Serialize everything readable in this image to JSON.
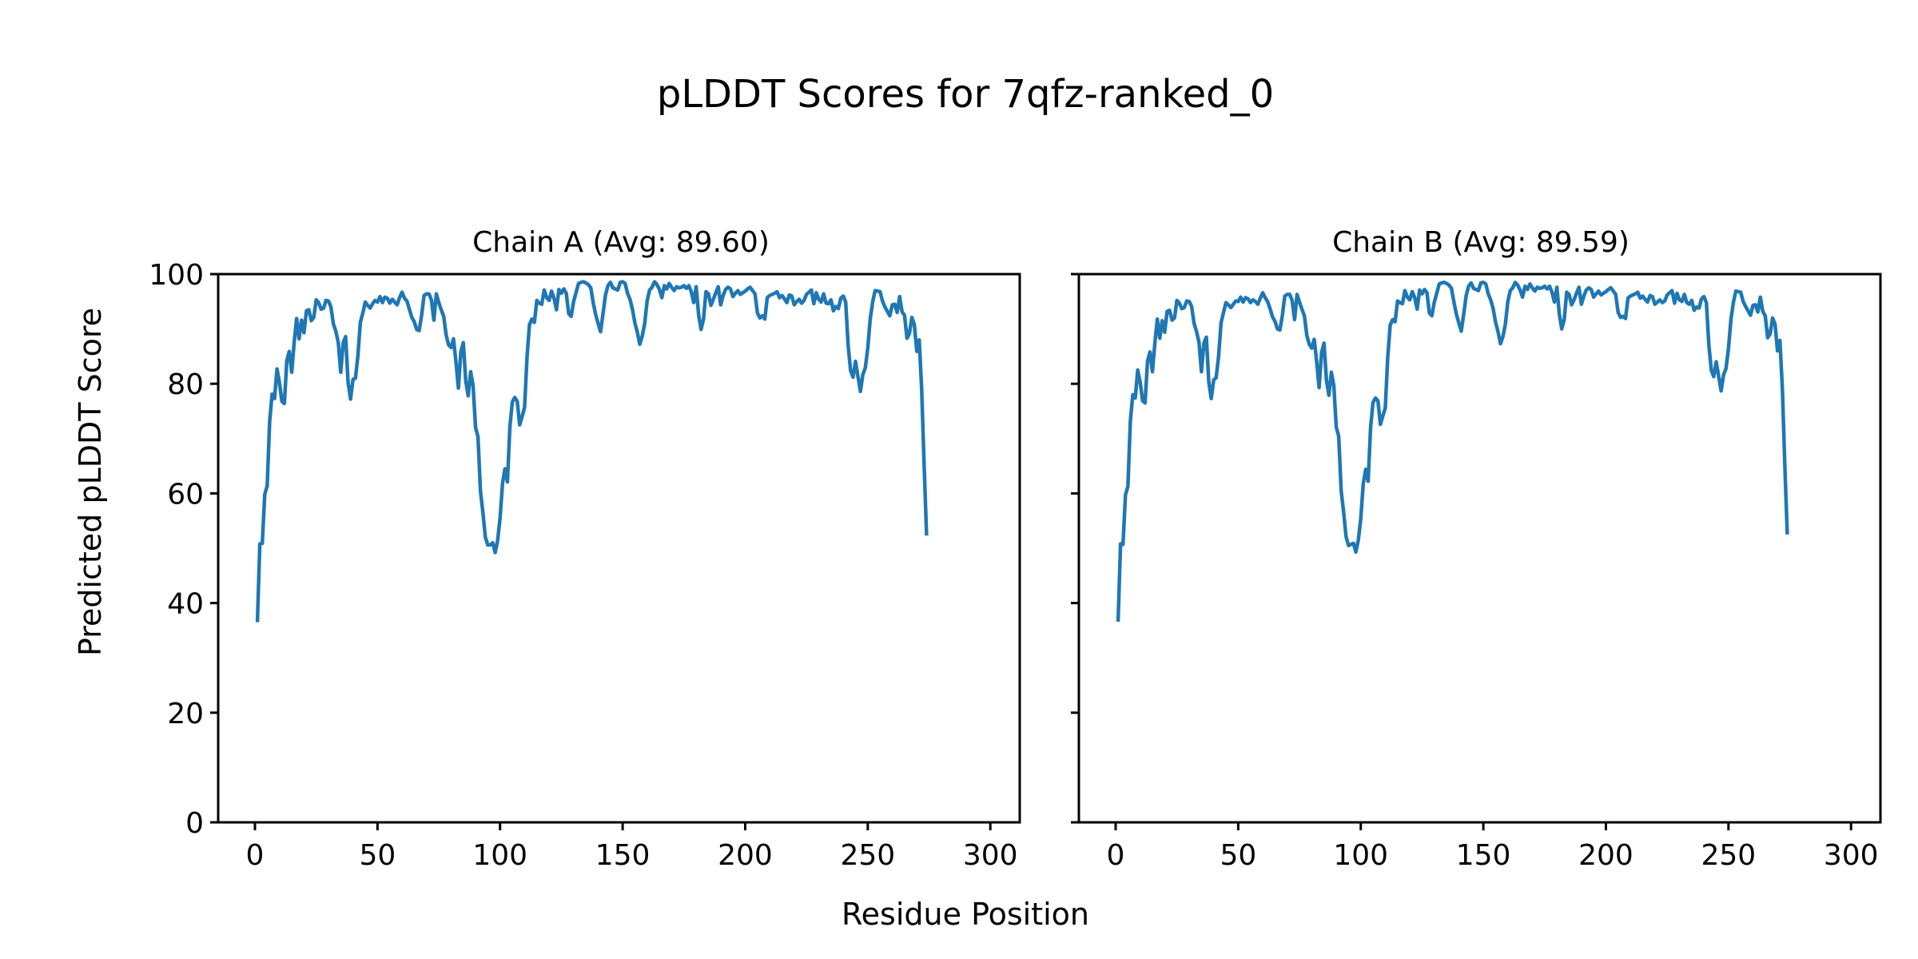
{
  "figure_title": "pLDDT Scores for 7qfz-ranked_0",
  "shared_xlabel": "Residue Position",
  "shared_ylabel": "Predicted pLDDT Score",
  "line_color": "#1f77b4",
  "chart_data": [
    {
      "type": "line",
      "title": "Chain A (Avg: 89.60)",
      "xlim": [
        -15,
        312
      ],
      "ylim": [
        0,
        100
      ],
      "xticks": [
        0,
        50,
        100,
        150,
        200,
        250,
        300
      ],
      "yticks": [
        0,
        20,
        40,
        60,
        80,
        100
      ],
      "grid": false,
      "x_start": 1,
      "y": [
        36.5,
        50.8,
        50.9,
        59.8,
        61.4,
        73.1,
        78.1,
        77.3,
        82.7,
        80.2,
        76.8,
        76.4,
        84.2,
        85.9,
        82.1,
        87.5,
        91.9,
        88.2,
        91.6,
        89.3,
        93.3,
        93.5,
        91.5,
        92.1,
        95.3,
        94.8,
        93.6,
        93.8,
        95.2,
        95.1,
        94.0,
        90.9,
        89.6,
        87.5,
        82.1,
        87.5,
        88.6,
        80.2,
        77.2,
        80.8,
        81.0,
        85.1,
        91.2,
        92.9,
        94.9,
        94.3,
        93.8,
        94.6,
        95.2,
        94.9,
        95.9,
        94.8,
        95.8,
        95.6,
        94.7,
        95.4,
        94.9,
        94.4,
        95.7,
        96.7,
        95.6,
        95.1,
        93.6,
        92.1,
        91.3,
        89.9,
        89.7,
        92.5,
        96.1,
        96.4,
        96.4,
        95.3,
        91.6,
        96.4,
        94.8,
        93.5,
        92.3,
        88.9,
        87.1,
        86.6,
        88.2,
        84.0,
        79.2,
        85.8,
        87.5,
        80.5,
        77.8,
        82.2,
        79.6,
        72.0,
        70.3,
        60.4,
        56.5,
        52.0,
        50.6,
        50.6,
        51.0,
        49.2,
        51.4,
        55.5,
        61.8,
        64.5,
        62.1,
        72.1,
        76.7,
        77.5,
        76.8,
        72.5,
        74.0,
        75.7,
        84.9,
        90.8,
        91.8,
        91.2,
        95.2,
        94.7,
        94.5,
        97.1,
        95.7,
        95.2,
        96.9,
        95.6,
        93.5,
        97.2,
        96.5,
        97.3,
        96.5,
        92.8,
        92.3,
        95.0,
        96.6,
        98.3,
        98.5,
        98.6,
        98.4,
        98.1,
        97.5,
        94.8,
        92.6,
        91.0,
        89.5,
        92.8,
        96.2,
        97.9,
        98.5,
        97.5,
        97.3,
        97.1,
        98.5,
        98.6,
        98.3,
        96.5,
        95.4,
        93.6,
        91.1,
        89.4,
        87.2,
        88.7,
        91.0,
        95.1,
        97.1,
        97.6,
        98.6,
        98.1,
        97.2,
        95.7,
        97.9,
        97.3,
        98.3,
        97.6,
        97.0,
        97.7,
        97.5,
        97.6,
        97.9,
        97.4,
        97.9,
        96.8,
        94.8,
        97.7,
        92.6,
        89.9,
        91.8,
        96.8,
        96.4,
        94.3,
        95.4,
        96.6,
        97.7,
        94.4,
        96.1,
        97.2,
        97.6,
        97.3,
        95.9,
        96.5,
        97.0,
        96.3,
        96.6,
        96.9,
        97.3,
        97.6,
        97.0,
        96.4,
        92.9,
        92.0,
        92.4,
        91.8,
        95.7,
        96.1,
        96.3,
        96.5,
        96.8,
        95.7,
        96.1,
        95.5,
        94.8,
        96.2,
        96.0,
        94.4,
        95.0,
        95.4,
        94.7,
        95.2,
        96.3,
        96.7,
        97.1,
        94.6,
        96.6,
        95.4,
        94.9,
        96.4,
        94.7,
        94.6,
        95.3,
        93.3,
        94.1,
        93.7,
        95.6,
        96.0,
        94.9,
        87.0,
        82.4,
        81.2,
        84.1,
        81.3,
        78.6,
        81.7,
        82.9,
        86.5,
        91.8,
        94.9,
        97.0,
        96.9,
        96.8,
        95.1,
        94.0,
        93.2,
        92.4,
        94.4,
        94.5,
        93.0,
        95.9,
        93.1,
        92.5,
        88.3,
        89.2,
        92.1,
        90.8,
        85.9,
        88.0,
        78.9,
        65.1,
        52.3
      ]
    },
    {
      "type": "line",
      "title": "Chain B (Avg: 89.59)",
      "xlim": [
        -15,
        312
      ],
      "ylim": [
        0,
        100
      ],
      "xticks": [
        0,
        50,
        100,
        150,
        200,
        250,
        300
      ],
      "yticks": [
        0,
        20,
        40,
        60,
        80,
        100
      ],
      "grid": false,
      "x_start": 1,
      "y": [
        36.6,
        50.8,
        50.7,
        59.7,
        61.3,
        73.2,
        78.0,
        77.4,
        82.5,
        80.3,
        76.9,
        76.5,
        84.1,
        85.8,
        82.2,
        87.4,
        91.8,
        88.3,
        91.5,
        89.4,
        93.2,
        93.4,
        91.6,
        92.0,
        95.2,
        94.7,
        93.7,
        93.9,
        95.1,
        95.0,
        94.1,
        91.0,
        89.5,
        87.6,
        82.2,
        87.4,
        88.5,
        80.3,
        77.3,
        80.7,
        81.1,
        85.0,
        91.1,
        93.0,
        94.8,
        94.4,
        93.9,
        94.5,
        95.1,
        95.0,
        95.8,
        94.9,
        95.7,
        95.5,
        94.8,
        95.3,
        95.0,
        94.5,
        95.6,
        96.6,
        95.7,
        95.0,
        93.7,
        92.2,
        91.4,
        90.0,
        89.8,
        92.4,
        96.0,
        96.3,
        96.3,
        95.2,
        91.7,
        96.3,
        94.9,
        93.6,
        92.4,
        88.8,
        87.2,
        86.5,
        88.1,
        84.1,
        79.3,
        85.7,
        87.4,
        80.6,
        77.9,
        82.1,
        79.7,
        72.1,
        70.4,
        60.5,
        56.6,
        52.1,
        50.5,
        50.7,
        50.9,
        49.3,
        51.5,
        55.4,
        61.7,
        64.4,
        62.2,
        72.0,
        76.6,
        77.4,
        76.9,
        72.6,
        74.1,
        75.6,
        84.8,
        90.7,
        91.7,
        91.3,
        95.1,
        94.8,
        94.6,
        97.0,
        95.8,
        95.3,
        96.8,
        95.7,
        93.6,
        97.1,
        96.4,
        97.2,
        96.6,
        92.9,
        92.4,
        94.9,
        96.5,
        98.2,
        98.4,
        98.5,
        98.3,
        98.0,
        97.4,
        94.9,
        92.7,
        91.1,
        89.6,
        92.7,
        96.1,
        97.8,
        98.4,
        97.4,
        97.2,
        97.0,
        98.4,
        98.5,
        98.2,
        96.4,
        95.3,
        93.7,
        91.2,
        89.5,
        87.3,
        88.6,
        90.9,
        95.0,
        97.0,
        97.5,
        98.5,
        98.0,
        97.1,
        95.8,
        97.8,
        97.2,
        98.2,
        97.5,
        96.9,
        97.6,
        97.4,
        97.5,
        97.8,
        97.3,
        97.8,
        96.7,
        94.9,
        97.6,
        92.7,
        90.0,
        91.7,
        96.7,
        96.3,
        94.4,
        95.3,
        96.5,
        97.6,
        94.5,
        96.0,
        97.1,
        97.5,
        97.2,
        95.8,
        96.4,
        96.9,
        96.2,
        96.5,
        96.8,
        97.2,
        97.5,
        96.9,
        96.3,
        93.0,
        92.1,
        92.3,
        91.9,
        95.6,
        96.0,
        96.2,
        96.4,
        96.7,
        95.6,
        96.0,
        95.4,
        94.9,
        96.1,
        95.9,
        94.5,
        94.9,
        95.3,
        94.8,
        95.1,
        96.2,
        96.6,
        97.0,
        94.7,
        96.5,
        95.3,
        95.0,
        96.3,
        94.8,
        94.5,
        95.2,
        93.4,
        94.0,
        93.8,
        95.5,
        95.9,
        94.8,
        87.1,
        82.5,
        81.3,
        84.0,
        81.4,
        78.7,
        81.6,
        82.8,
        86.4,
        91.7,
        94.8,
        96.9,
        96.8,
        96.7,
        95.0,
        94.1,
        93.3,
        92.5,
        94.3,
        94.4,
        93.1,
        95.8,
        93.2,
        92.4,
        88.4,
        89.1,
        92.0,
        90.9,
        86.0,
        87.9,
        79.0,
        65.0,
        52.5
      ]
    }
  ]
}
